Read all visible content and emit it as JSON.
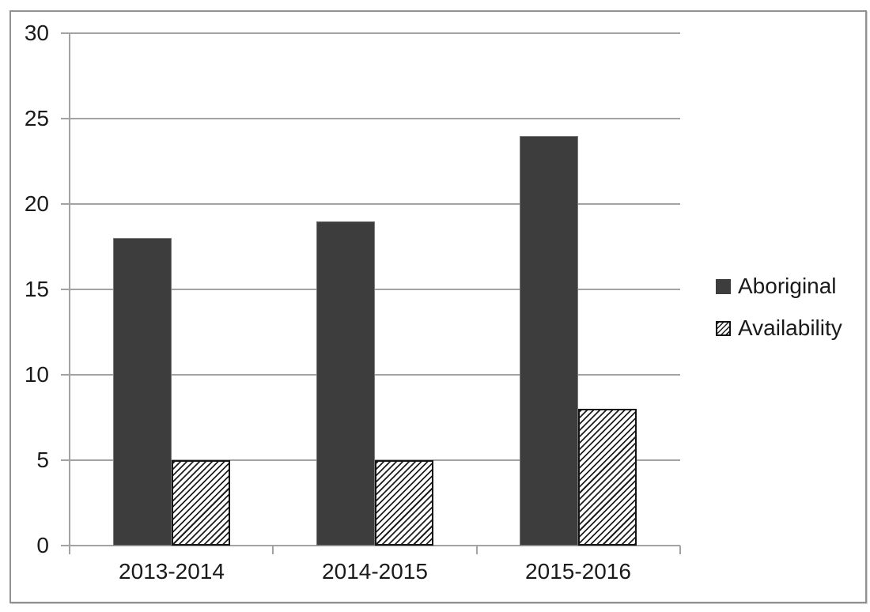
{
  "chart_data": {
    "type": "bar",
    "title": "",
    "xlabel": "",
    "ylabel": "",
    "categories": [
      "2013-2014",
      "2014-2015",
      "2015-2016"
    ],
    "series": [
      {
        "name": "Aboriginal",
        "values": [
          18,
          19,
          24
        ],
        "fill": "solid"
      },
      {
        "name": "Availability",
        "values": [
          5,
          5,
          8
        ],
        "fill": "hatched"
      }
    ],
    "ylim": [
      0,
      30
    ],
    "yticks": [
      0,
      5,
      10,
      15,
      20,
      25,
      30
    ],
    "grid": "horizontal",
    "legend_position": "right-middle"
  },
  "colors": {
    "bar_solid": "#3d3d3d",
    "bar_solid_border": "#7a7a7a",
    "hatch_line": "#1f1f1f",
    "hatch_bg": "#ffffff",
    "hatch_border": "#141414",
    "gridline": "#a3a3a3",
    "frame_border": "#919191",
    "text": "#1a1a1a",
    "background": "#ffffff"
  }
}
